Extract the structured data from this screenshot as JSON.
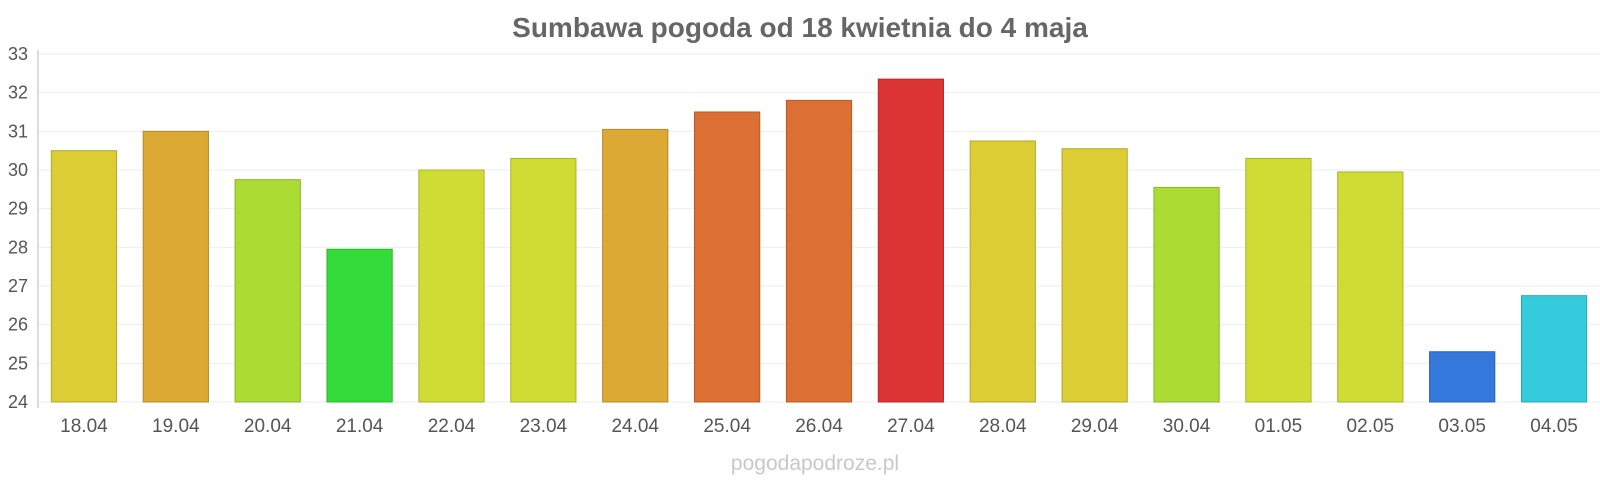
{
  "chart_data": {
    "type": "bar",
    "title": "Sumbawa pogoda od 18 kwietnia do 4 maja",
    "xlabel": "",
    "ylabel": "",
    "ylim": [
      24,
      33
    ],
    "yticks": [
      24,
      25,
      26,
      27,
      28,
      29,
      30,
      31,
      32,
      33
    ],
    "grid": true,
    "legend": "none",
    "categories": [
      "18.04",
      "19.04",
      "20.04",
      "21.04",
      "22.04",
      "23.04",
      "24.04",
      "25.04",
      "26.04",
      "27.04",
      "28.04",
      "29.04",
      "30.04",
      "01.05",
      "02.05",
      "03.05",
      "04.05"
    ],
    "values": [
      30.5,
      31.0,
      29.75,
      27.95,
      30.0,
      30.3,
      31.05,
      31.5,
      31.8,
      32.35,
      30.75,
      30.55,
      29.55,
      30.3,
      29.95,
      25.3,
      26.75
    ],
    "colors": [
      "#dccd34",
      "#dca934",
      "#aadc34",
      "#34dc3a",
      "#cedc34",
      "#cedc34",
      "#dca934",
      "#dc7034",
      "#dc7034",
      "#dc3434",
      "#dccd34",
      "#dccd34",
      "#aadc34",
      "#cedc34",
      "#cedc34",
      "#3478dc",
      "#34ccdc"
    ]
  },
  "credit": "pogodapodroze.pl"
}
